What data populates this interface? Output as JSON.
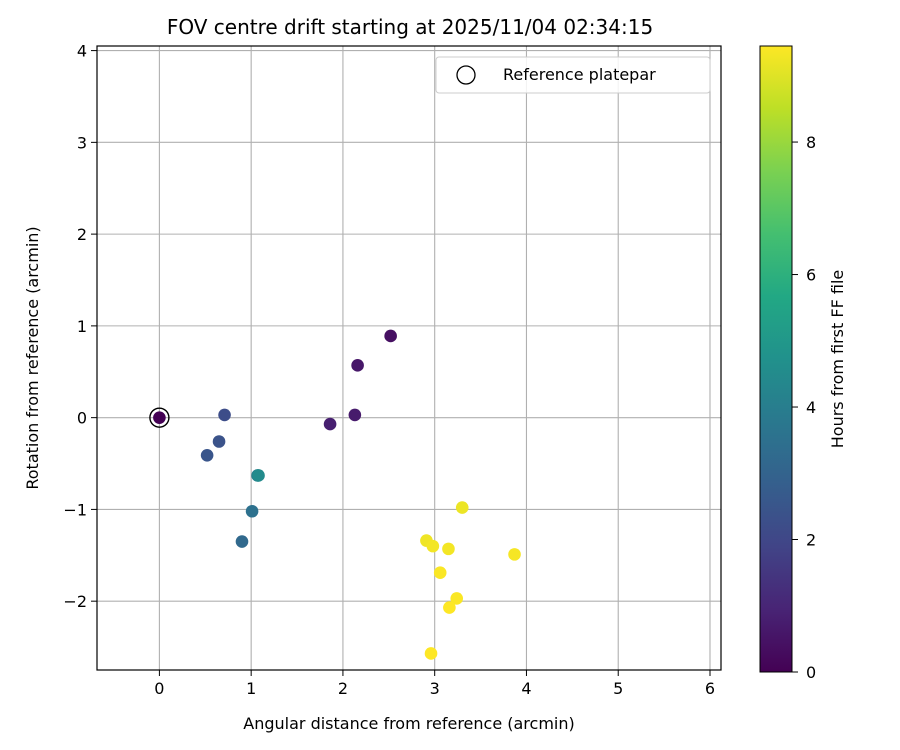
{
  "chart_data": {
    "type": "scatter",
    "title": "FOV centre drift starting at 2025/11/04 02:34:15",
    "xlabel": "Angular distance from reference (arcmin)",
    "ylabel": "Rotation from reference (arcmin)",
    "xlim": [
      -0.68,
      6.12
    ],
    "ylim": [
      -2.75,
      4.05
    ],
    "xticks": [
      0,
      1,
      2,
      3,
      4,
      5,
      6
    ],
    "yticks": [
      -2,
      -1,
      0,
      1,
      2,
      3,
      4
    ],
    "grid": true,
    "legend": {
      "placement": "top-right",
      "entries": [
        "Reference platepar"
      ]
    },
    "colorbar": {
      "label": "Hours from first FF file",
      "min": 0,
      "max": 9.45,
      "ticks": [
        0,
        2,
        4,
        6,
        8
      ],
      "colormap": "viridis"
    },
    "reference": {
      "x": 0.0,
      "y": 0.0,
      "label": "Reference platepar"
    },
    "points": [
      {
        "x": 0.0,
        "y": 0.0,
        "hours": 0.0
      },
      {
        "x": 2.52,
        "y": 0.89,
        "hours": 0.4
      },
      {
        "x": 2.16,
        "y": 0.57,
        "hours": 0.6
      },
      {
        "x": 2.13,
        "y": 0.03,
        "hours": 0.7
      },
      {
        "x": 1.86,
        "y": -0.07,
        "hours": 0.8
      },
      {
        "x": 0.71,
        "y": 0.03,
        "hours": 2.2
      },
      {
        "x": 0.65,
        "y": -0.26,
        "hours": 2.4
      },
      {
        "x": 0.52,
        "y": -0.41,
        "hours": 2.5
      },
      {
        "x": 0.9,
        "y": -1.35,
        "hours": 3.2
      },
      {
        "x": 1.01,
        "y": -1.02,
        "hours": 3.5
      },
      {
        "x": 1.07,
        "y": -0.63,
        "hours": 4.0
      },
      {
        "x": 1.08,
        "y": -0.63,
        "hours": 4.5
      },
      {
        "x": 3.3,
        "y": -0.98,
        "hours": 9.2
      },
      {
        "x": 2.91,
        "y": -1.34,
        "hours": 9.25
      },
      {
        "x": 2.98,
        "y": -1.4,
        "hours": 9.3
      },
      {
        "x": 3.15,
        "y": -1.43,
        "hours": 9.3
      },
      {
        "x": 3.87,
        "y": -1.49,
        "hours": 9.35
      },
      {
        "x": 3.06,
        "y": -1.69,
        "hours": 9.4
      },
      {
        "x": 3.24,
        "y": -1.97,
        "hours": 9.4
      },
      {
        "x": 3.16,
        "y": -2.07,
        "hours": 9.45
      },
      {
        "x": 2.96,
        "y": -2.57,
        "hours": 9.45
      }
    ]
  }
}
